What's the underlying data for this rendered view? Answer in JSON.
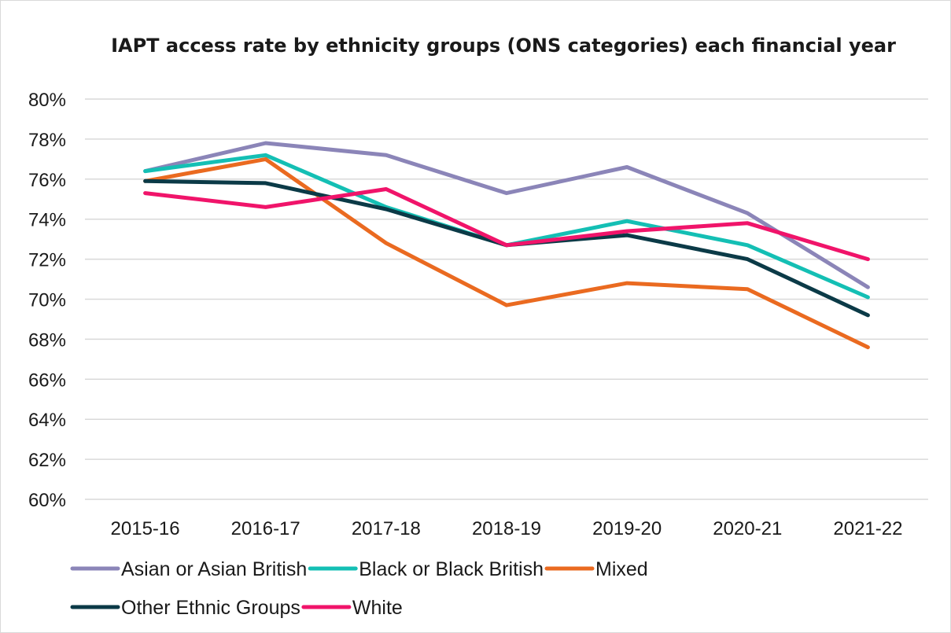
{
  "chart_data": {
    "type": "line",
    "title": "IAPT access rate by ethnicity groups (ONS categories) each financial year",
    "xlabel": "",
    "ylabel": "",
    "categories": [
      "2015-16",
      "2016-17",
      "2017-18",
      "2018-19",
      "2019-20",
      "2020-21",
      "2021-22"
    ],
    "ylim": [
      60,
      80
    ],
    "yticks": [
      60,
      62,
      64,
      66,
      68,
      70,
      72,
      74,
      76,
      78,
      80
    ],
    "ytick_labels": [
      "60%",
      "62%",
      "64%",
      "66%",
      "68%",
      "70%",
      "72%",
      "74%",
      "76%",
      "78%",
      "80%"
    ],
    "grid": "horizontal",
    "legend_position": "bottom",
    "series": [
      {
        "name": "Asian or Asian British",
        "color": "#8b85b8",
        "values": [
          76.4,
          77.8,
          77.2,
          75.3,
          76.6,
          74.3,
          70.6
        ]
      },
      {
        "name": "Black or Black British",
        "color": "#14bfb4",
        "values": [
          76.4,
          77.2,
          74.6,
          72.7,
          73.9,
          72.7,
          70.1
        ]
      },
      {
        "name": "Mixed",
        "color": "#ea6a20",
        "values": [
          75.9,
          77.0,
          72.8,
          69.7,
          70.8,
          70.5,
          67.6
        ]
      },
      {
        "name": "Other Ethnic Groups",
        "color": "#0b3a47",
        "values": [
          75.9,
          75.8,
          74.5,
          72.7,
          73.2,
          72.0,
          69.2
        ]
      },
      {
        "name": "White",
        "color": "#f0146a",
        "values": [
          75.3,
          74.6,
          75.5,
          72.7,
          73.4,
          73.8,
          72.0
        ]
      }
    ]
  }
}
